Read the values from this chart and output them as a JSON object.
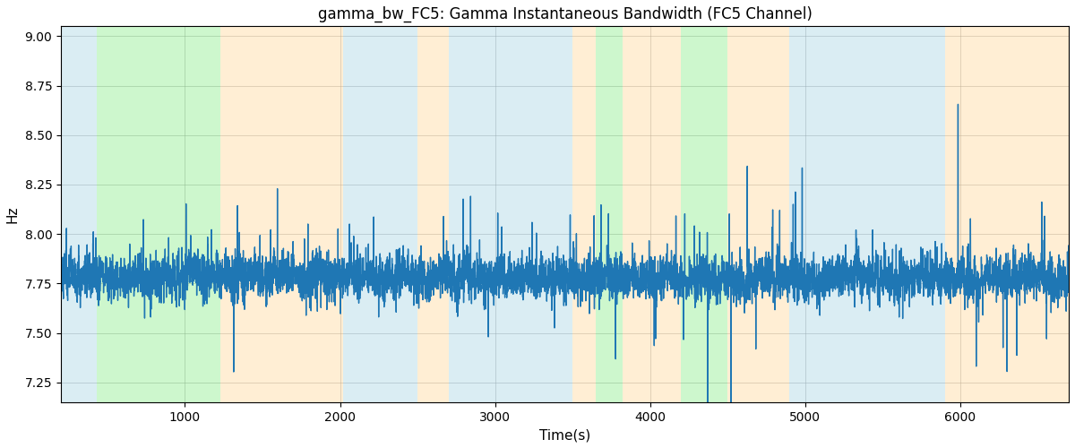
{
  "title": "gamma_bw_FC5: Gamma Instantaneous Bandwidth (FC5 Channel)",
  "xlabel": "Time(s)",
  "ylabel": "Hz",
  "xlim": [
    200,
    6700
  ],
  "ylim": [
    7.15,
    9.05
  ],
  "yticks": [
    7.25,
    7.5,
    7.75,
    8.0,
    8.25,
    8.5,
    8.75,
    9.0
  ],
  "xticks": [
    1000,
    2000,
    3000,
    4000,
    5000,
    6000
  ],
  "bg_bands": [
    {
      "xmin": 200,
      "xmax": 430,
      "color": "#add8e6",
      "alpha": 0.45
    },
    {
      "xmin": 430,
      "xmax": 1230,
      "color": "#90ee90",
      "alpha": 0.45
    },
    {
      "xmin": 1230,
      "xmax": 2020,
      "color": "#ffdaa0",
      "alpha": 0.45
    },
    {
      "xmin": 2020,
      "xmax": 2500,
      "color": "#add8e6",
      "alpha": 0.45
    },
    {
      "xmin": 2500,
      "xmax": 2700,
      "color": "#ffdaa0",
      "alpha": 0.45
    },
    {
      "xmin": 2700,
      "xmax": 3500,
      "color": "#add8e6",
      "alpha": 0.45
    },
    {
      "xmin": 3500,
      "xmax": 3650,
      "color": "#ffdaa0",
      "alpha": 0.45
    },
    {
      "xmin": 3650,
      "xmax": 3820,
      "color": "#90ee90",
      "alpha": 0.45
    },
    {
      "xmin": 3820,
      "xmax": 4200,
      "color": "#ffdaa0",
      "alpha": 0.45
    },
    {
      "xmin": 4200,
      "xmax": 4500,
      "color": "#90ee90",
      "alpha": 0.45
    },
    {
      "xmin": 4500,
      "xmax": 4900,
      "color": "#ffdaa0",
      "alpha": 0.45
    },
    {
      "xmin": 4900,
      "xmax": 5700,
      "color": "#add8e6",
      "alpha": 0.45
    },
    {
      "xmin": 5700,
      "xmax": 5900,
      "color": "#add8e6",
      "alpha": 0.45
    },
    {
      "xmin": 5900,
      "xmax": 6700,
      "color": "#ffdaa0",
      "alpha": 0.45
    }
  ],
  "line_color": "#1f77b4",
  "line_width": 1.0,
  "mean": 7.78,
  "std": 0.1,
  "seed": 42,
  "n_points": 6500,
  "t_start": 200,
  "t_end": 6700,
  "figsize": [
    12,
    5
  ],
  "dpi": 100,
  "title_fontsize": 12
}
